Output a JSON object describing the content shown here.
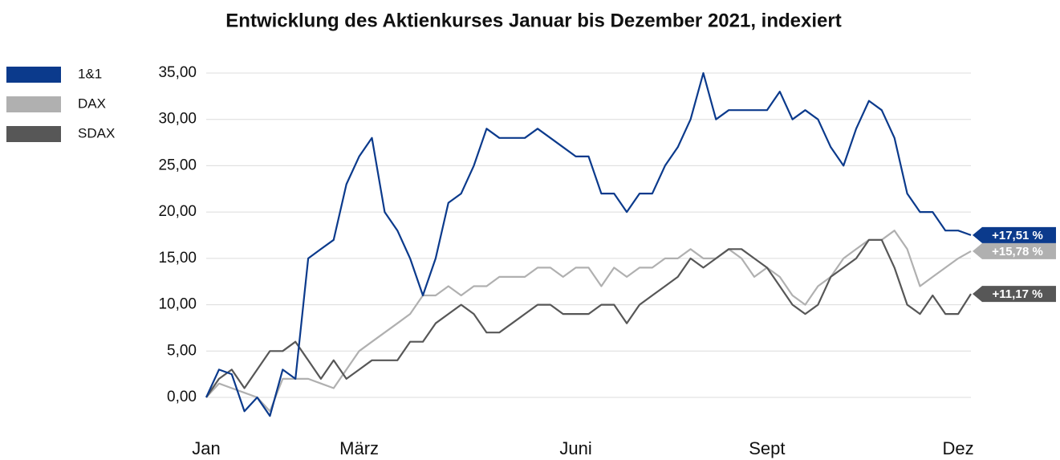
{
  "chart_data": {
    "type": "line",
    "title": "Entwicklung des Aktienkurses Januar bis Dezember 2021, indexiert",
    "categories": [
      "Jan",
      null,
      null,
      null,
      null,
      null,
      null,
      null,
      null,
      null,
      null,
      null,
      "März",
      null,
      null,
      null,
      null,
      null,
      null,
      null,
      null,
      null,
      null,
      null,
      null,
      null,
      null,
      null,
      null,
      "Juni",
      null,
      null,
      null,
      null,
      null,
      null,
      null,
      null,
      null,
      null,
      null,
      null,
      null,
      null,
      "Sept",
      null,
      null,
      null,
      null,
      null,
      null,
      null,
      null,
      null,
      null,
      null,
      null,
      null,
      null,
      "Dez",
      null
    ],
    "series": [
      {
        "name": "1&1",
        "color": "#0b3a8c",
        "end_label": "+17,51 %",
        "values": [
          0,
          3,
          2.5,
          -1.5,
          0,
          -2,
          3,
          2,
          15,
          16,
          17,
          23,
          26,
          28,
          20,
          18,
          15,
          11,
          15,
          21,
          22,
          25,
          29,
          28,
          28,
          28,
          29,
          28,
          27,
          26,
          26,
          22,
          22,
          20,
          22,
          22,
          25,
          27,
          30,
          35,
          30,
          31,
          31,
          31,
          31,
          33,
          30,
          31,
          30,
          27,
          25,
          29,
          32,
          31,
          28,
          22,
          20,
          20,
          18,
          18,
          17.51
        ]
      },
      {
        "name": "DAX",
        "color": "#b0b0b0",
        "end_label": "+15,78 %",
        "values": [
          0,
          1.5,
          1,
          0.5,
          0,
          -1.5,
          2,
          2,
          2,
          1.5,
          1,
          3,
          5,
          6,
          7,
          8,
          9,
          11,
          11,
          12,
          11,
          12,
          12,
          13,
          13,
          13,
          14,
          14,
          13,
          14,
          14,
          12,
          14,
          13,
          14,
          14,
          15,
          15,
          16,
          15,
          15,
          16,
          15,
          13,
          14,
          13,
          11,
          10,
          12,
          13,
          15,
          16,
          17,
          17,
          18,
          16,
          12,
          13,
          14,
          15,
          15.78
        ]
      },
      {
        "name": "SDAX",
        "color": "#575757",
        "end_label": "+11,17 %",
        "values": [
          0,
          2,
          3,
          1,
          3,
          5,
          5,
          6,
          4,
          2,
          4,
          2,
          3,
          4,
          4,
          4,
          6,
          6,
          8,
          9,
          10,
          9,
          7,
          7,
          8,
          9,
          10,
          10,
          9,
          9,
          9,
          10,
          10,
          8,
          10,
          11,
          12,
          13,
          15,
          14,
          15,
          16,
          16,
          15,
          14,
          12,
          10,
          9,
          10,
          13,
          14,
          15,
          17,
          17,
          14,
          10,
          9,
          11,
          9,
          9,
          11.17
        ]
      }
    ],
    "ylim": [
      -2.5,
      35.5
    ],
    "yticks": [
      {
        "value": 0,
        "label": "0,00"
      },
      {
        "value": 5,
        "label": "5,00"
      },
      {
        "value": 10,
        "label": "10,00"
      },
      {
        "value": 15,
        "label": "15,00"
      },
      {
        "value": 20,
        "label": "20,00"
      },
      {
        "value": 25,
        "label": "25,00"
      },
      {
        "value": 30,
        "label": "30,00"
      },
      {
        "value": 35,
        "label": "35,00"
      }
    ],
    "grid": true
  }
}
